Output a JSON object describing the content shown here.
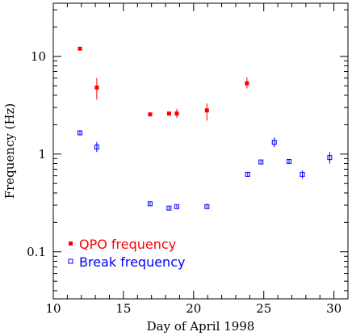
{
  "chart_data": {
    "type": "scatter",
    "xlabel": "Day of April 1998",
    "ylabel": "Frequency (Hz)",
    "xlim": [
      10,
      31
    ],
    "ylim": [
      0.033,
      35
    ],
    "yscale": "log",
    "x_ticks": [
      10,
      15,
      20,
      25,
      30
    ],
    "x_tick_labels": [
      "10",
      "15",
      "20",
      "25",
      "30"
    ],
    "y_ticks": [
      0.1,
      1,
      10
    ],
    "y_tick_labels": [
      "0.1",
      "1",
      "10"
    ],
    "grid": false,
    "legend_position": "bottom-left",
    "series": [
      {
        "name": "QPO frequency",
        "marker": "filled-square",
        "color": "#ff0000",
        "points": [
          {
            "x": 11.9,
            "y": 12.0,
            "ylo": 11.5,
            "yhi": 12.5
          },
          {
            "x": 13.1,
            "y": 4.8,
            "ylo": 3.6,
            "yhi": 6.0
          },
          {
            "x": 16.9,
            "y": 2.55,
            "ylo": 2.45,
            "yhi": 2.65
          },
          {
            "x": 18.25,
            "y": 2.6,
            "ylo": 2.5,
            "yhi": 2.7
          },
          {
            "x": 18.8,
            "y": 2.6,
            "ylo": 2.35,
            "yhi": 2.9
          },
          {
            "x": 20.95,
            "y": 2.8,
            "ylo": 2.2,
            "yhi": 3.3
          },
          {
            "x": 23.8,
            "y": 5.3,
            "ylo": 4.7,
            "yhi": 6.1
          }
        ]
      },
      {
        "name": "Break frequency",
        "marker": "open-square",
        "color": "#0000ff",
        "points": [
          {
            "x": 11.9,
            "y": 1.65,
            "ylo": 1.58,
            "yhi": 1.72
          },
          {
            "x": 13.1,
            "y": 1.18,
            "ylo": 1.05,
            "yhi": 1.33
          },
          {
            "x": 16.9,
            "y": 0.31,
            "ylo": 0.3,
            "yhi": 0.32
          },
          {
            "x": 18.25,
            "y": 0.28,
            "ylo": 0.27,
            "yhi": 0.29
          },
          {
            "x": 18.8,
            "y": 0.29,
            "ylo": 0.28,
            "yhi": 0.3
          },
          {
            "x": 20.95,
            "y": 0.29,
            "ylo": 0.28,
            "yhi": 0.31
          },
          {
            "x": 23.85,
            "y": 0.62,
            "ylo": 0.6,
            "yhi": 0.64
          },
          {
            "x": 24.8,
            "y": 0.83,
            "ylo": 0.8,
            "yhi": 0.86
          },
          {
            "x": 25.75,
            "y": 1.32,
            "ylo": 1.18,
            "yhi": 1.48
          },
          {
            "x": 26.8,
            "y": 0.84,
            "ylo": 0.8,
            "yhi": 0.88
          },
          {
            "x": 27.75,
            "y": 0.62,
            "ylo": 0.56,
            "yhi": 0.68
          },
          {
            "x": 29.7,
            "y": 0.92,
            "ylo": 0.8,
            "yhi": 1.05
          }
        ]
      }
    ]
  }
}
